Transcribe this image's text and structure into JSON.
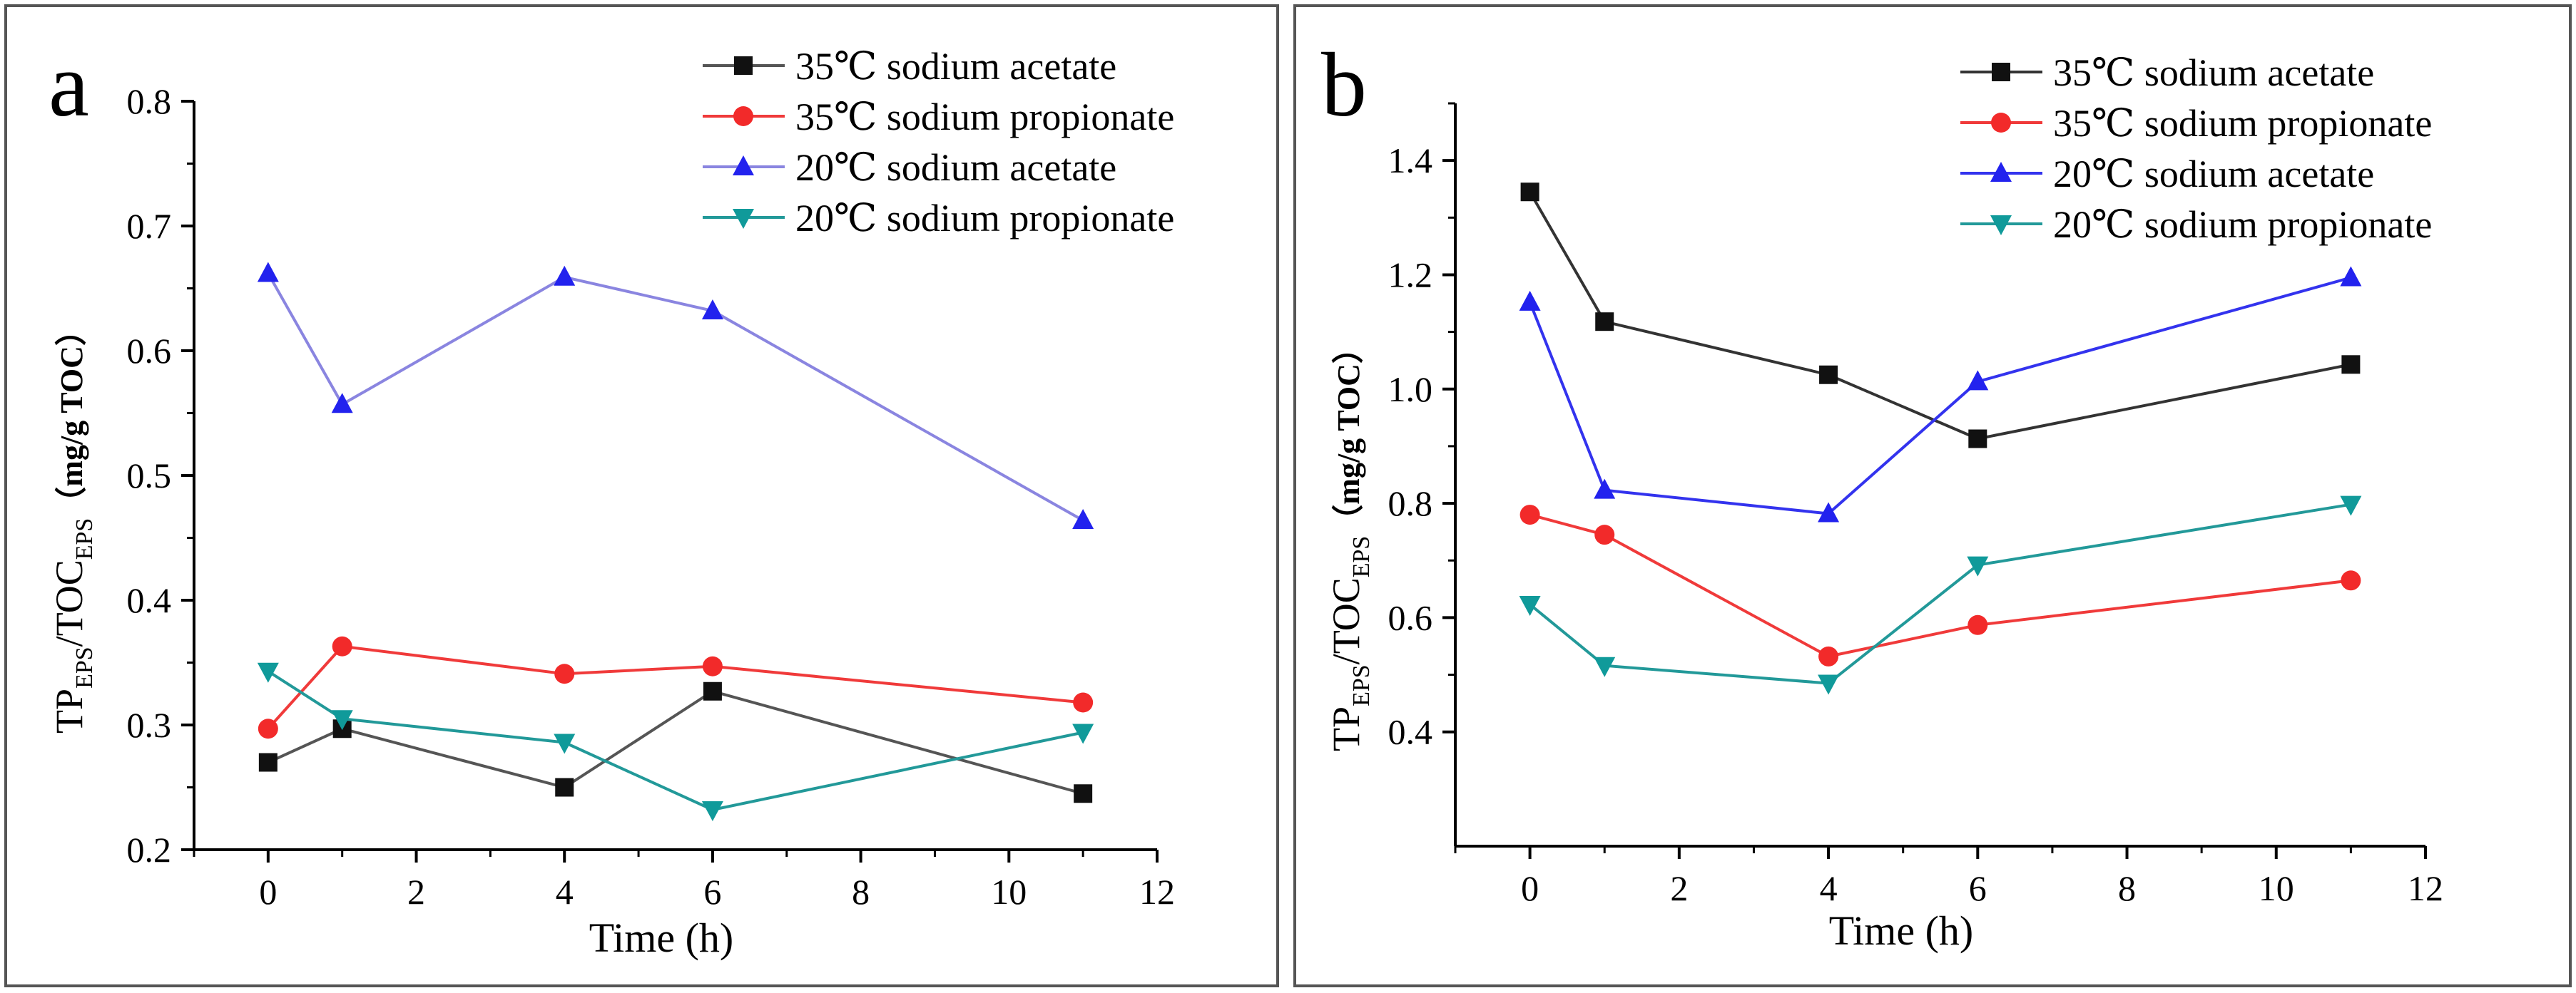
{
  "figure": {
    "colors": {
      "35C sodium acetate": "#111111",
      "35C sodium propionate": "#f22a2a",
      "20C sodium acetate": "#2222ee",
      "20C sodium propionate": "#109a9a"
    }
  },
  "chart_data": [
    {
      "type": "line",
      "panel_label": "a",
      "xlabel": "Time (h)",
      "ylabel_main": "TP",
      "ylabel_sub1": "EPS",
      "ylabel_mid": "/TOC",
      "ylabel_sub2": "EPS",
      "ylabel_unit": "（mg/g TOC）",
      "xlim": [
        -1,
        12
      ],
      "ylim": [
        0.2,
        0.8
      ],
      "xticks": [
        0,
        2,
        4,
        6,
        8,
        10,
        12
      ],
      "yticks": [
        0.2,
        0.3,
        0.4,
        0.5,
        0.6,
        0.7,
        0.8
      ],
      "ytick_labels": [
        "0.2",
        "0.3",
        "0.4",
        "0.5",
        "0.6",
        "0.7",
        "0.8"
      ],
      "x": [
        0,
        1,
        4,
        6,
        11
      ],
      "series": [
        {
          "name": "35℃ sodium acetate",
          "marker": "square",
          "color": "#111111",
          "line_color": "#555555",
          "values": [
            0.27,
            0.297,
            0.25,
            0.327,
            0.245
          ]
        },
        {
          "name": "35℃ sodium propionate",
          "marker": "circle",
          "color": "#f22a2a",
          "line_color": "#f03a3a",
          "values": [
            0.297,
            0.363,
            0.341,
            0.347,
            0.318
          ]
        },
        {
          "name": "20℃ sodium acetate",
          "marker": "triangle-up",
          "color": "#2222ee",
          "line_color": "#8a85e0",
          "values": [
            0.662,
            0.557,
            0.659,
            0.632,
            0.464
          ]
        },
        {
          "name": "20℃ sodium propionate",
          "marker": "triangle-down",
          "color": "#109a9a",
          "line_color": "#229999",
          "values": [
            0.343,
            0.305,
            0.286,
            0.232,
            0.294
          ]
        }
      ]
    },
    {
      "type": "line",
      "panel_label": "b",
      "xlabel": "Time (h)",
      "ylabel_main": "TP",
      "ylabel_sub1": "EPS",
      "ylabel_mid": "/TOC",
      "ylabel_sub2": "EPS",
      "ylabel_unit": "（mg/g TOC）",
      "xlim": [
        -1,
        12
      ],
      "ylim": [
        0.2,
        1.5
      ],
      "xticks": [
        0,
        2,
        4,
        6,
        8,
        10,
        12
      ],
      "yticks": [
        0.4,
        0.6,
        0.8,
        1.0,
        1.2,
        1.4
      ],
      "ytick_labels": [
        "0.4",
        "0.6",
        "0.8",
        "1.0",
        "1.2",
        "1.4"
      ],
      "x": [
        0,
        1,
        4,
        6,
        11
      ],
      "series": [
        {
          "name": "35℃ sodium acetate",
          "marker": "square",
          "color": "#111111",
          "line_color": "#333333",
          "values": [
            1.345,
            1.118,
            1.025,
            0.913,
            1.043
          ]
        },
        {
          "name": "35℃ sodium propionate",
          "marker": "circle",
          "color": "#f22a2a",
          "line_color": "#f03a3a",
          "values": [
            0.78,
            0.745,
            0.532,
            0.587,
            0.665
          ]
        },
        {
          "name": "20℃ sodium acetate",
          "marker": "triangle-up",
          "color": "#2222ee",
          "line_color": "#3333ee",
          "values": [
            1.152,
            0.823,
            0.782,
            1.013,
            1.195
          ]
        },
        {
          "name": "20℃ sodium propionate",
          "marker": "triangle-down",
          "color": "#109a9a",
          "line_color": "#229999",
          "values": [
            0.623,
            0.516,
            0.485,
            0.692,
            0.798
          ]
        }
      ]
    }
  ]
}
